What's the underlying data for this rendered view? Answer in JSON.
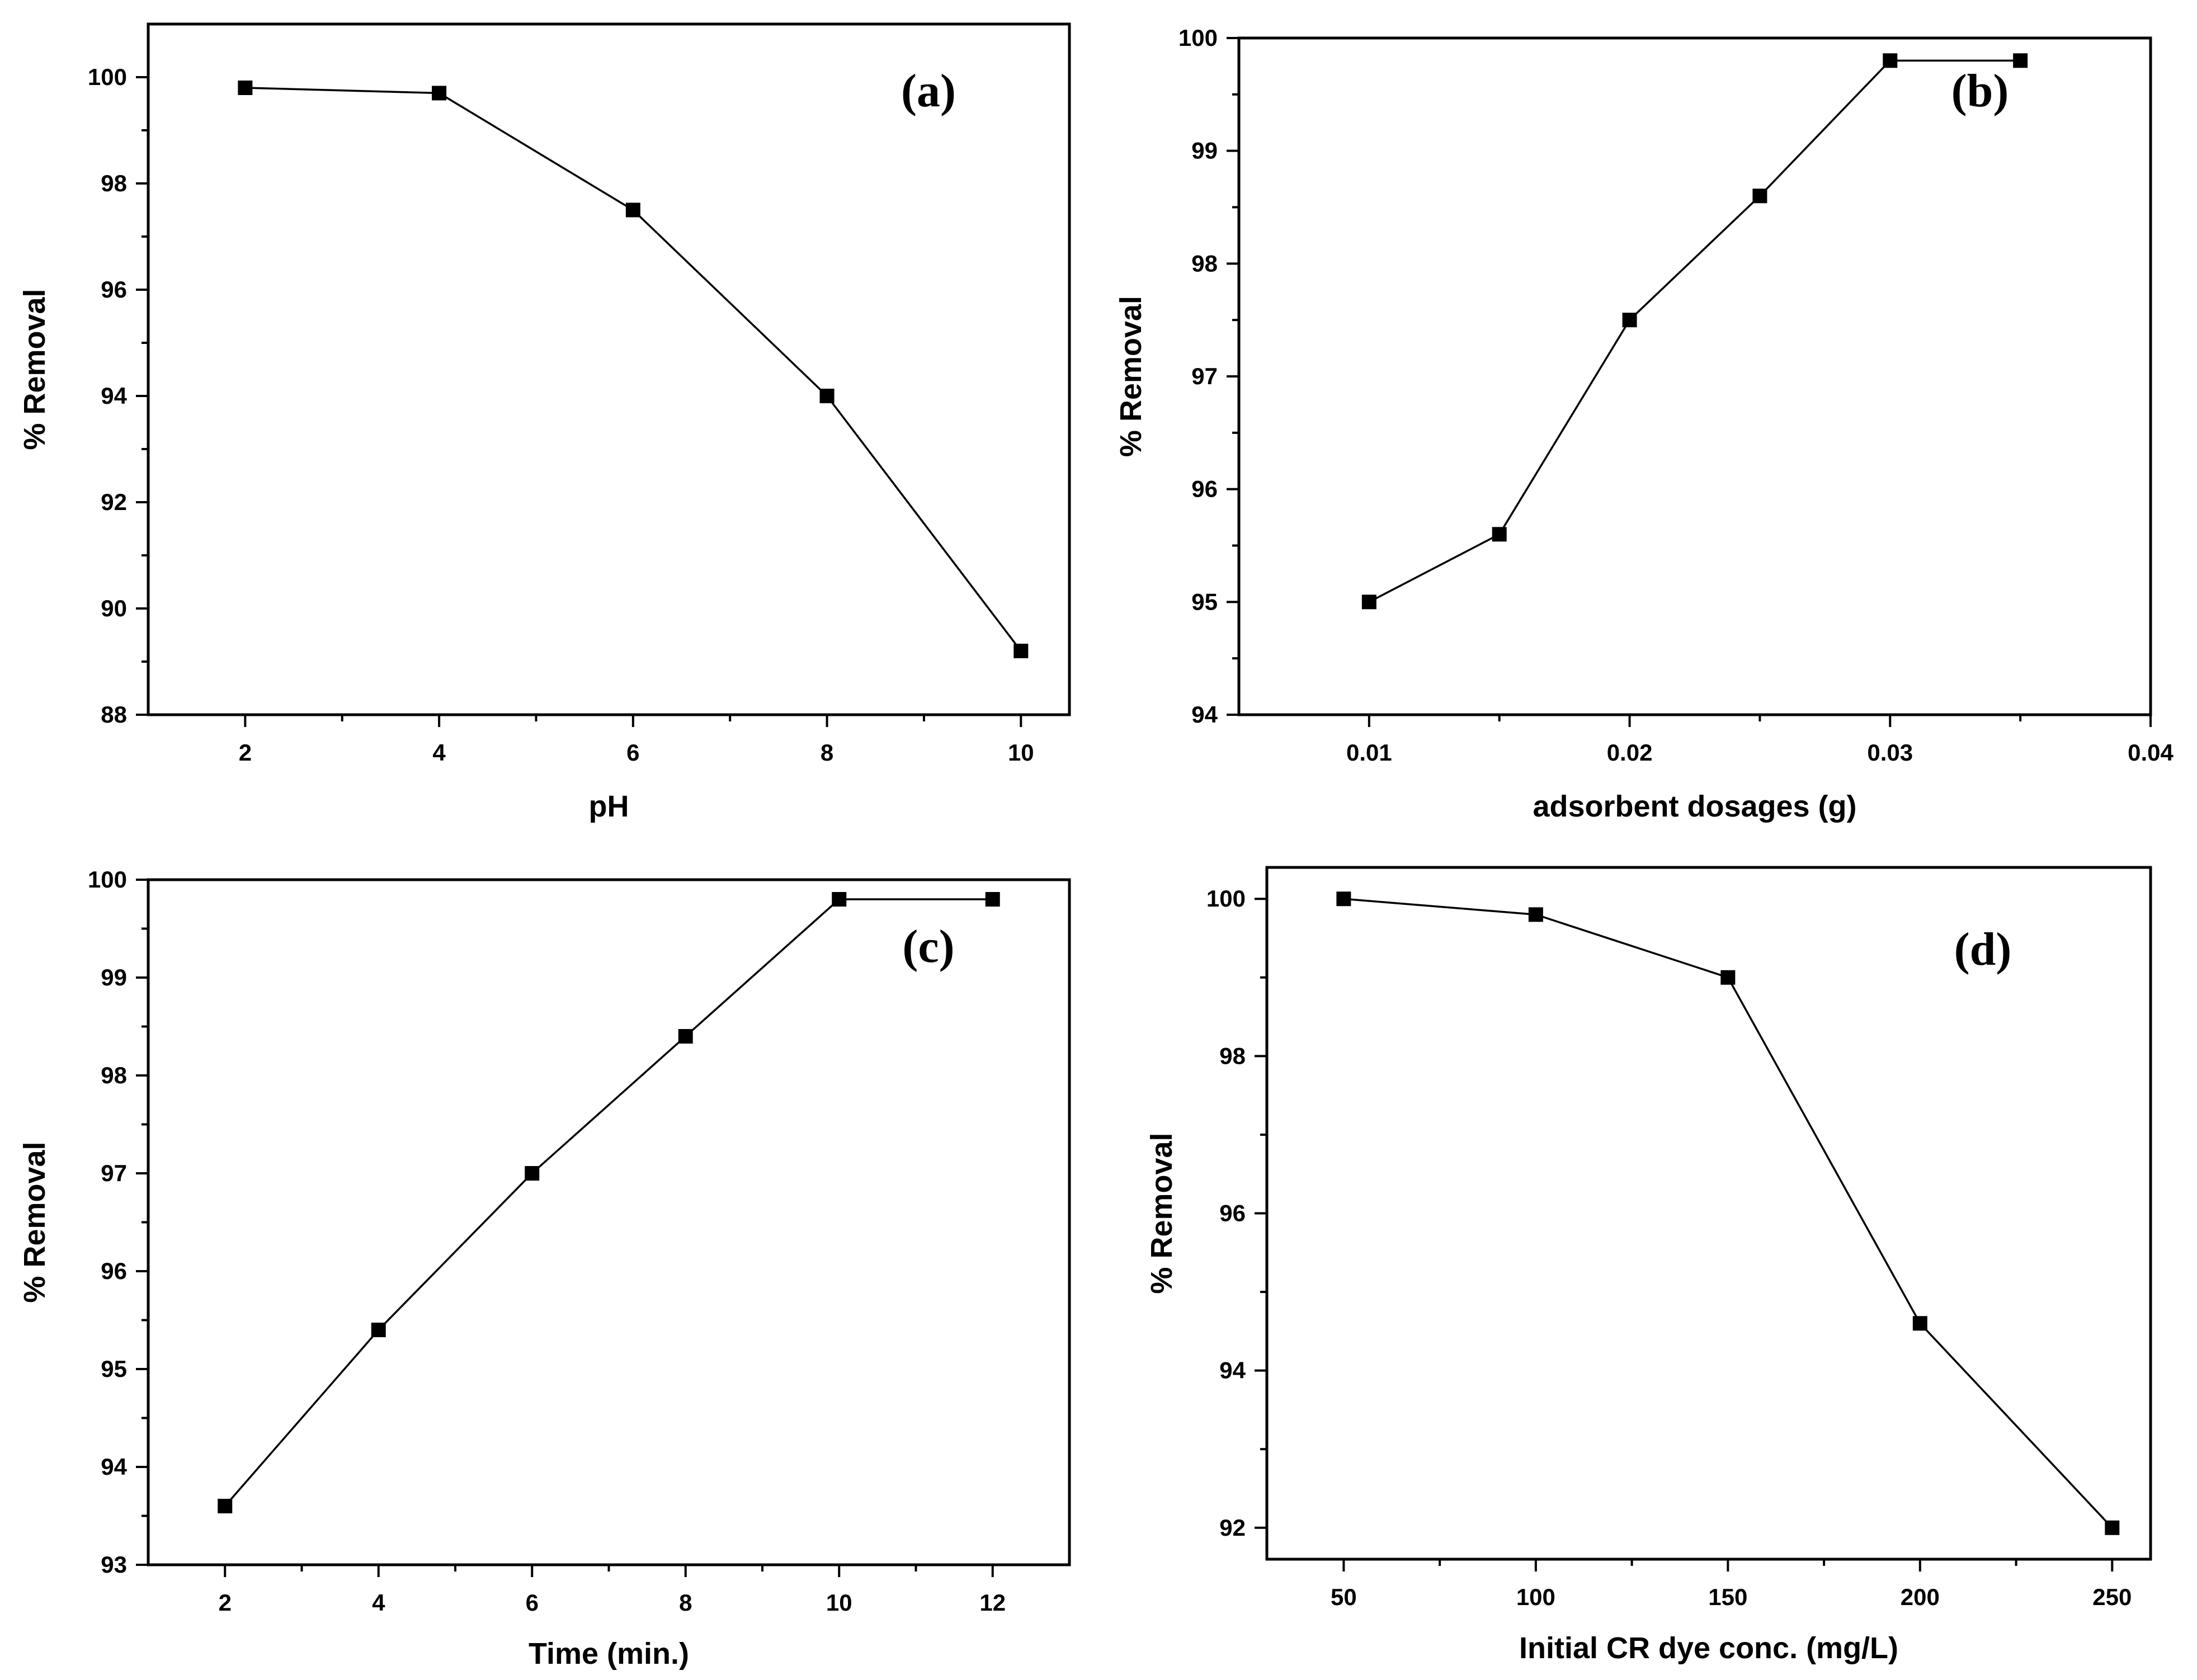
{
  "chart_data": [
    {
      "type": "line",
      "panel_label": "(a)",
      "xlabel": "pH",
      "ylabel": "% Removal",
      "xlim": [
        1,
        10.5
      ],
      "ylim": [
        88,
        101
      ],
      "xticks": [
        2,
        4,
        6,
        8,
        10
      ],
      "yticks": [
        88,
        90,
        92,
        94,
        96,
        98,
        100
      ],
      "x": [
        2,
        4,
        6,
        8,
        10
      ],
      "values": [
        99.8,
        99.7,
        97.5,
        94.0,
        89.2
      ]
    },
    {
      "type": "line",
      "panel_label": "(b)",
      "xlabel": "adsorbent dosages (g)",
      "ylabel": "% Removal",
      "xlim": [
        0.005,
        0.04
      ],
      "ylim": [
        94,
        100
      ],
      "xticks": [
        0.01,
        0.02,
        0.03,
        0.04
      ],
      "yticks": [
        94,
        95,
        96,
        97,
        98,
        99,
        100
      ],
      "x": [
        0.01,
        0.015,
        0.02,
        0.025,
        0.03,
        0.035
      ],
      "values": [
        95.0,
        95.6,
        97.5,
        98.6,
        99.8,
        99.8
      ]
    },
    {
      "type": "line",
      "panel_label": "(c)",
      "xlabel": "Time (min.)",
      "ylabel": "% Removal",
      "xlim": [
        1,
        13
      ],
      "ylim": [
        93,
        100
      ],
      "xticks": [
        2,
        4,
        6,
        8,
        10,
        12
      ],
      "yticks": [
        93,
        94,
        95,
        96,
        97,
        98,
        99,
        100
      ],
      "x": [
        2,
        4,
        6,
        8,
        10,
        12
      ],
      "values": [
        93.6,
        95.4,
        97.0,
        98.4,
        99.8,
        99.8
      ]
    },
    {
      "type": "line",
      "panel_label": "(d)",
      "xlabel": "Initial CR dye conc. (mg/L)",
      "ylabel": "% Removal",
      "xlim": [
        30,
        260
      ],
      "ylim": [
        91.6,
        100.4
      ],
      "xticks": [
        50,
        100,
        150,
        200,
        250
      ],
      "yticks": [
        92,
        94,
        96,
        98,
        100
      ],
      "x": [
        50,
        100,
        150,
        200,
        250
      ],
      "values": [
        100.0,
        99.8,
        99.0,
        94.6,
        92.0
      ]
    }
  ]
}
